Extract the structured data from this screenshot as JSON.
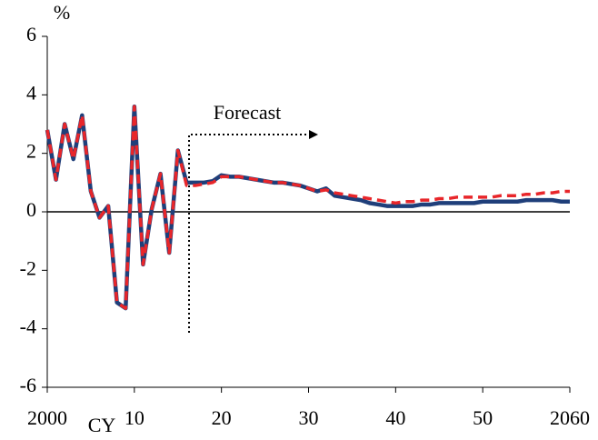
{
  "chart_data": {
    "type": "line",
    "y_unit": "%",
    "x_label": "CY",
    "annotation": "Forecast",
    "x": [
      2000,
      2001,
      2002,
      2003,
      2004,
      2005,
      2006,
      2007,
      2008,
      2009,
      2010,
      2011,
      2012,
      2013,
      2014,
      2015,
      2016,
      2017,
      2018,
      2019,
      2020,
      2021,
      2022,
      2023,
      2024,
      2025,
      2026,
      2027,
      2028,
      2029,
      2030,
      2031,
      2032,
      2033,
      2034,
      2035,
      2036,
      2037,
      2038,
      2039,
      2040,
      2041,
      2042,
      2043,
      2044,
      2045,
      2046,
      2047,
      2048,
      2049,
      2050,
      2051,
      2052,
      2053,
      2054,
      2055,
      2056,
      2057,
      2058,
      2059,
      2060
    ],
    "series": [
      {
        "color": "#1f3f7a",
        "dashed": false,
        "values": [
          2.8,
          1.1,
          3.0,
          1.8,
          3.3,
          0.7,
          -0.2,
          0.2,
          -3.1,
          -3.3,
          3.6,
          -1.8,
          0.1,
          1.3,
          -1.4,
          2.1,
          1.0,
          1.0,
          1.0,
          1.05,
          1.25,
          1.2,
          1.2,
          1.15,
          1.1,
          1.05,
          1.0,
          1.0,
          0.95,
          0.9,
          0.8,
          0.7,
          0.8,
          0.55,
          0.5,
          0.45,
          0.4,
          0.3,
          0.25,
          0.2,
          0.2,
          0.2,
          0.2,
          0.25,
          0.25,
          0.3,
          0.3,
          0.3,
          0.3,
          0.3,
          0.35,
          0.35,
          0.35,
          0.35,
          0.35,
          0.4,
          0.4,
          0.4,
          0.4,
          0.35,
          0.35
        ]
      },
      {
        "color": "#e8262a",
        "dashed": true,
        "values": [
          2.8,
          1.1,
          3.0,
          1.8,
          3.3,
          0.7,
          -0.2,
          0.2,
          -3.1,
          -3.3,
          3.6,
          -1.8,
          0.1,
          1.3,
          -1.4,
          2.1,
          0.9,
          0.9,
          0.95,
          1.0,
          1.2,
          1.2,
          1.2,
          1.15,
          1.1,
          1.05,
          1.0,
          1.0,
          0.95,
          0.9,
          0.8,
          0.7,
          0.75,
          0.65,
          0.6,
          0.55,
          0.5,
          0.45,
          0.4,
          0.35,
          0.3,
          0.35,
          0.35,
          0.4,
          0.4,
          0.45,
          0.45,
          0.5,
          0.5,
          0.5,
          0.5,
          0.5,
          0.55,
          0.55,
          0.55,
          0.6,
          0.6,
          0.65,
          0.65,
          0.7,
          0.7
        ]
      }
    ],
    "xlim": [
      2000,
      2060
    ],
    "xticks": [
      2000,
      {
        "value": 2010,
        "label": "10"
      },
      {
        "value": 2020,
        "label": "20"
      },
      {
        "value": 2030,
        "label": "30"
      },
      {
        "value": 2040,
        "label": "40"
      },
      {
        "value": 2050,
        "label": "50"
      },
      2060
    ],
    "ylim": [
      -6,
      6
    ],
    "yticks": [
      -6,
      -4,
      -2,
      0,
      2,
      4,
      6
    ],
    "grid": false
  }
}
